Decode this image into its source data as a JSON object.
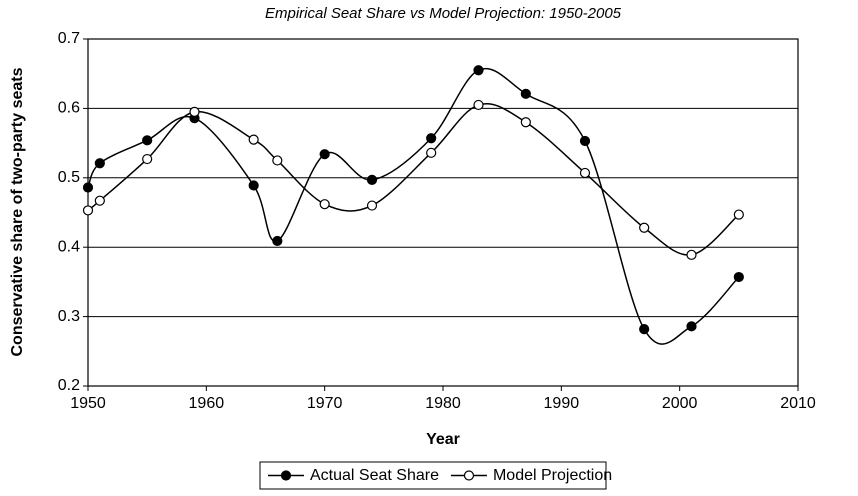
{
  "chart_data": {
    "type": "line",
    "title": "Empirical Seat Share vs Model Projection: 1950-2005",
    "x_label": "Year",
    "y_label": "Conservative share of two-party seats",
    "x": [
      1950,
      1951,
      1955,
      1959,
      1964,
      1966,
      1970,
      1974,
      1979,
      1983,
      1987,
      1992,
      1997,
      2001,
      2005
    ],
    "series": [
      {
        "name": "Actual Seat Share",
        "color": "#000000",
        "marker": "filled",
        "values": [
          0.486,
          0.521,
          0.554,
          0.586,
          0.489,
          0.409,
          0.534,
          0.497,
          0.557,
          0.655,
          0.621,
          0.553,
          0.282,
          0.286,
          0.357
        ]
      },
      {
        "name": "Model Projection",
        "color": "#000000",
        "marker": "open",
        "values": [
          0.453,
          0.467,
          0.527,
          0.595,
          0.555,
          0.525,
          0.462,
          0.46,
          0.536,
          0.605,
          0.58,
          0.507,
          0.428,
          0.389,
          0.447
        ]
      }
    ],
    "xlim": [
      1950,
      2010
    ],
    "xticks": [
      1950,
      1960,
      1970,
      1980,
      1990,
      2000,
      2010
    ],
    "ylim": [
      0.2,
      0.7
    ],
    "yticks": [
      0.2,
      0.3,
      0.4,
      0.5,
      0.6,
      0.7
    ],
    "grid": true,
    "legend": "bottom"
  }
}
